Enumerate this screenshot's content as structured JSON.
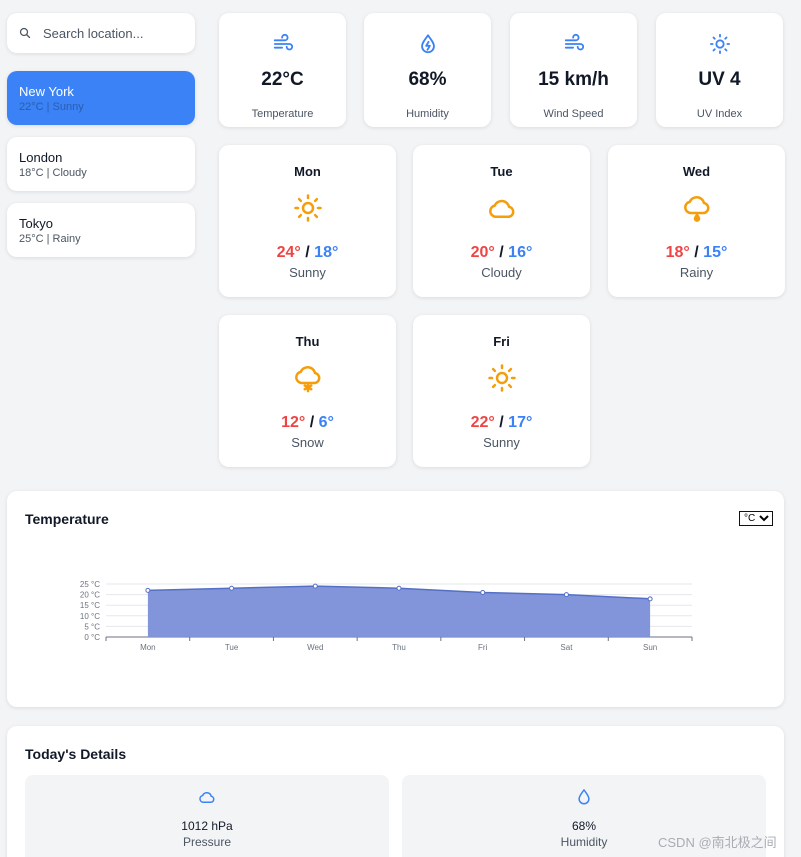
{
  "search": {
    "placeholder": "Search location..."
  },
  "locations": [
    {
      "name": "New York",
      "info": "22°C | Sunny",
      "active": true
    },
    {
      "name": "London",
      "info": "18°C | Cloudy",
      "active": false
    },
    {
      "name": "Tokyo",
      "info": "25°C | Rainy",
      "active": false
    }
  ],
  "stats": [
    {
      "value": "22°C",
      "label": "Temperature",
      "icon": "wind-icon"
    },
    {
      "value": "68%",
      "label": "Humidity",
      "icon": "droplet-bolt-icon"
    },
    {
      "value": "15 km/h",
      "label": "Wind Speed",
      "icon": "wind-icon"
    },
    {
      "value": "UV 4",
      "label": "UV Index",
      "icon": "sun-icon"
    }
  ],
  "forecast": [
    {
      "day": "Mon",
      "high": "24°",
      "sep": "/",
      "low": "18°",
      "condition": "Sunny",
      "icon": "sun-icon"
    },
    {
      "day": "Tue",
      "high": "20°",
      "sep": "/",
      "low": "16°",
      "condition": "Cloudy",
      "icon": "cloud-icon"
    },
    {
      "day": "Wed",
      "high": "18°",
      "sep": "/",
      "low": "15°",
      "condition": "Rainy",
      "icon": "rain-cloud-icon"
    },
    {
      "day": "Thu",
      "high": "12°",
      "sep": "/",
      "low": "6°",
      "condition": "Snow",
      "icon": "snow-cloud-icon"
    },
    {
      "day": "Fri",
      "high": "22°",
      "sep": "/",
      "low": "17°",
      "condition": "Sunny",
      "icon": "sun-icon"
    }
  ],
  "chart_card": {
    "title": "Temperature",
    "unit_options": [
      "°C"
    ],
    "unit_selected": "°C"
  },
  "chart_data": {
    "type": "area",
    "title": "",
    "xlabel": "",
    "ylabel": "",
    "categories": [
      "Mon",
      "Tue",
      "Wed",
      "Thu",
      "Fri",
      "Sat",
      "Sun"
    ],
    "series": [
      {
        "values": [
          22,
          23,
          24,
          23,
          21,
          20,
          18
        ]
      }
    ],
    "ylim": [
      0,
      25
    ],
    "yticks": [
      0,
      5,
      10,
      15,
      20,
      25
    ],
    "ytick_labels": [
      "0 °C",
      "5 °C",
      "10 °C",
      "15 °C",
      "20 °C",
      "25 °C"
    ],
    "grid": true,
    "colors": {
      "fill": "#7b8fd9",
      "line": "#5470c6"
    }
  },
  "details": {
    "title": "Today's Details",
    "items": [
      {
        "value": "1012 hPa",
        "label": "Pressure",
        "icon": "cloud-icon"
      },
      {
        "value": "68%",
        "label": "Humidity",
        "icon": "droplet-icon"
      }
    ]
  },
  "watermark": "CSDN @南北极之间",
  "colors": {
    "accent": "#3b82f6",
    "high_temp": "#ef4444",
    "low_temp": "#3b82f6",
    "weather_icon": "#f59e0b",
    "stat_icon": "#3b82f6"
  }
}
